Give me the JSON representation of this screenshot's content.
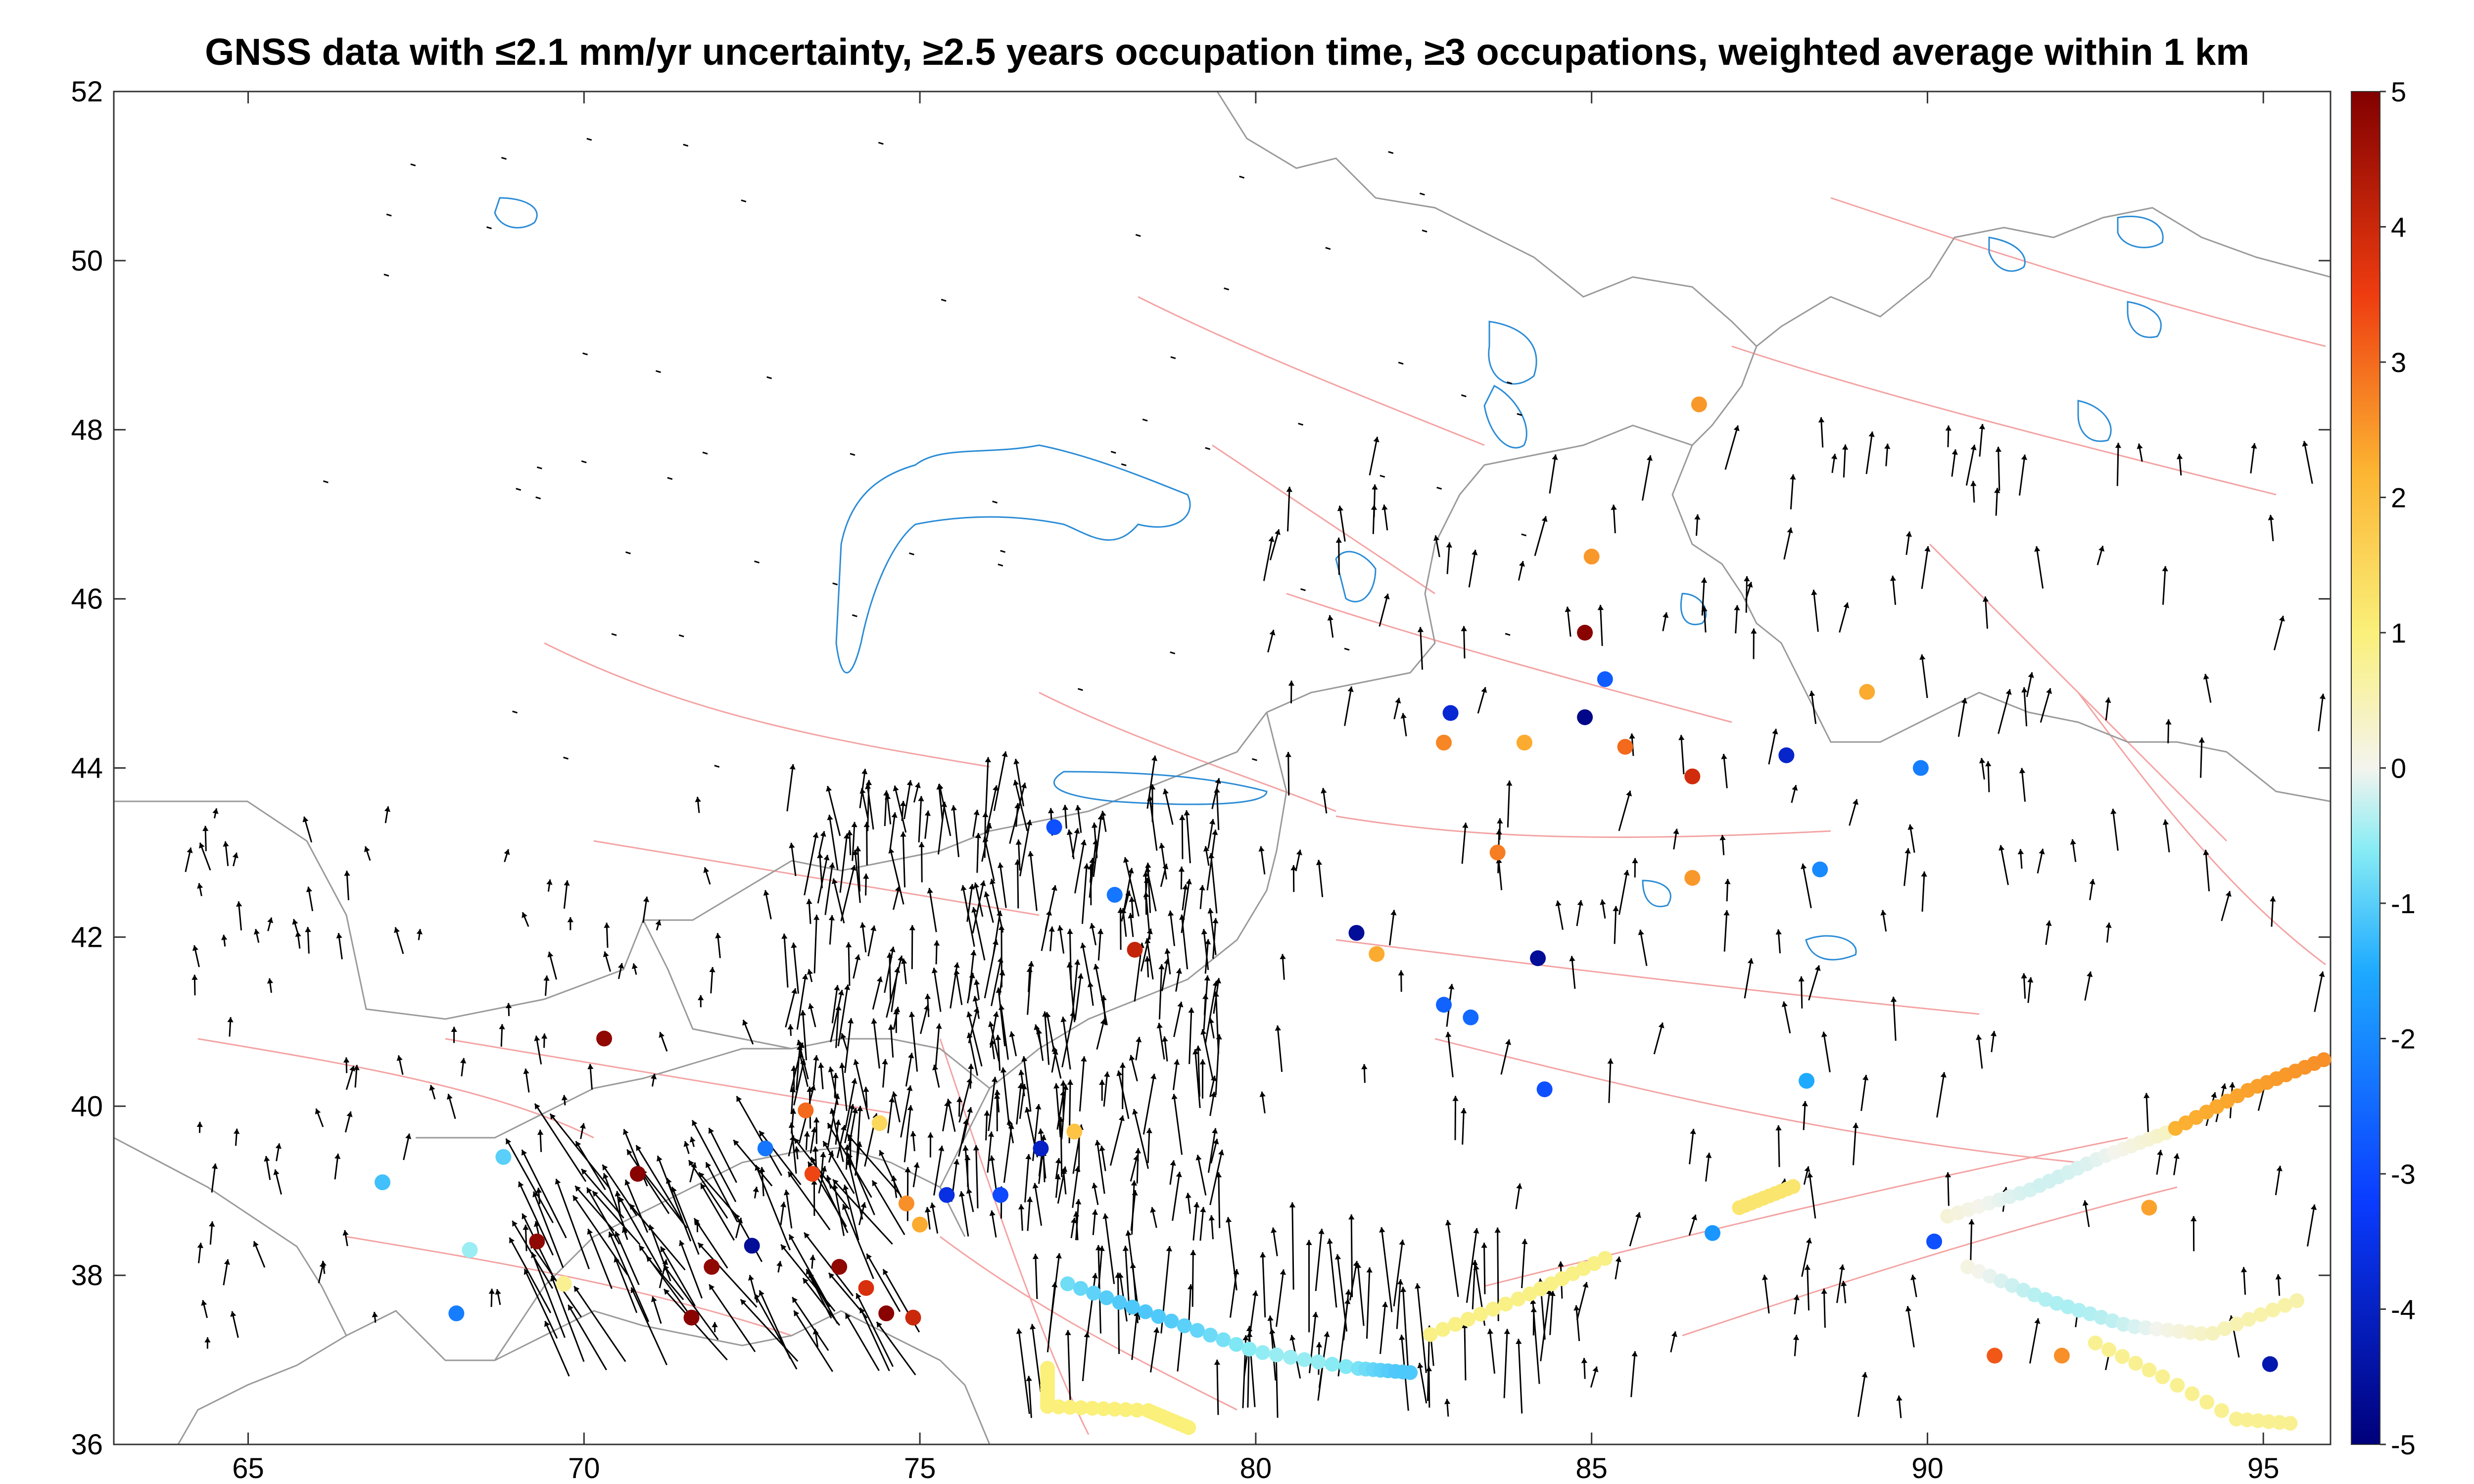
{
  "title": "GNSS data with ≤2.1 mm/yr uncertainty, ≥2.5 years occupation time, ≥3 occupations, weighted average within 1 km",
  "colors": {
    "border": "#9a9a9a",
    "lakes": "#2b8cd6",
    "faults": "#f4a3a3",
    "arrows": "#000000",
    "frame": "#000000"
  },
  "chart_data": {
    "type": "scatter",
    "title": "GNSS data with ≤2.1 mm/yr uncertainty, ≥2.5 years occupation time, ≥3 occupations, weighted average within 1 km",
    "xlim": [
      63,
      96
    ],
    "ylim": [
      36,
      52
    ],
    "xticks": [
      65,
      70,
      75,
      80,
      85,
      90,
      95
    ],
    "yticks": [
      36,
      38,
      40,
      42,
      44,
      46,
      48,
      50,
      52
    ],
    "colorbar": {
      "range": [
        -5,
        5
      ],
      "ticks": [
        5,
        4,
        3,
        2,
        1,
        0,
        -1,
        -2,
        -3,
        -4,
        -5
      ],
      "colormap": "jet-like (dark blue → cyan → white → yellow → dark red)"
    },
    "stations": [
      {
        "lon": 67.0,
        "lat": 39.1,
        "v": -1.2
      },
      {
        "lon": 68.1,
        "lat": 37.55,
        "v": -2.2
      },
      {
        "lon": 68.3,
        "lat": 38.3,
        "v": -0.5
      },
      {
        "lon": 68.8,
        "lat": 39.4,
        "v": -1.0
      },
      {
        "lon": 69.3,
        "lat": 38.4,
        "v": 4.8
      },
      {
        "lon": 69.7,
        "lat": 37.9,
        "v": 0.8
      },
      {
        "lon": 70.3,
        "lat": 40.8,
        "v": 4.8
      },
      {
        "lon": 70.8,
        "lat": 39.2,
        "v": 4.9
      },
      {
        "lon": 71.6,
        "lat": 37.5,
        "v": 4.9
      },
      {
        "lon": 71.9,
        "lat": 38.1,
        "v": 4.8
      },
      {
        "lon": 72.5,
        "lat": 38.35,
        "v": -4.6
      },
      {
        "lon": 73.3,
        "lat": 39.95,
        "v": 3.0
      },
      {
        "lon": 73.4,
        "lat": 39.2,
        "v": 3.4
      },
      {
        "lon": 73.8,
        "lat": 38.1,
        "v": 4.8
      },
      {
        "lon": 74.2,
        "lat": 37.85,
        "v": 3.8
      },
      {
        "lon": 74.5,
        "lat": 37.55,
        "v": 4.9
      },
      {
        "lon": 74.9,
        "lat": 37.5,
        "v": 4.0
      },
      {
        "lon": 74.8,
        "lat": 38.85,
        "v": 2.6
      },
      {
        "lon": 75.0,
        "lat": 38.6,
        "v": 2.3
      },
      {
        "lon": 75.4,
        "lat": 38.95,
        "v": -3.6
      },
      {
        "lon": 76.2,
        "lat": 38.95,
        "v": -3.0
      },
      {
        "lon": 76.8,
        "lat": 39.5,
        "v": -4.0
      },
      {
        "lon": 77.0,
        "lat": 43.3,
        "v": -2.9
      },
      {
        "lon": 77.9,
        "lat": 42.5,
        "v": -2.3
      },
      {
        "lon": 78.2,
        "lat": 41.85,
        "v": 4.1
      },
      {
        "lon": 77.3,
        "lat": 39.7,
        "v": 1.9
      },
      {
        "lon": 72.7,
        "lat": 39.5,
        "v": -2.3
      },
      {
        "lon": 74.4,
        "lat": 39.8,
        "v": 1.5
      },
      {
        "lon": 81.5,
        "lat": 42.05,
        "v": -4.6
      },
      {
        "lon": 81.8,
        "lat": 41.8,
        "v": 2.3
      },
      {
        "lon": 82.8,
        "lat": 41.2,
        "v": -2.6
      },
      {
        "lon": 83.2,
        "lat": 41.05,
        "v": -2.5
      },
      {
        "lon": 84.2,
        "lat": 41.75,
        "v": -4.6
      },
      {
        "lon": 84.3,
        "lat": 40.2,
        "v": -2.9
      },
      {
        "lon": 84.9,
        "lat": 45.6,
        "v": 4.9
      },
      {
        "lon": 85.2,
        "lat": 45.05,
        "v": -2.7
      },
      {
        "lon": 84.9,
        "lat": 44.6,
        "v": -4.8
      },
      {
        "lon": 82.9,
        "lat": 44.65,
        "v": -3.8
      },
      {
        "lon": 85.5,
        "lat": 44.25,
        "v": 3.0
      },
      {
        "lon": 86.5,
        "lat": 43.9,
        "v": 3.9
      },
      {
        "lon": 87.9,
        "lat": 44.15,
        "v": -3.9
      },
      {
        "lon": 89.9,
        "lat": 44.0,
        "v": -2.2
      },
      {
        "lon": 86.5,
        "lat": 42.7,
        "v": 2.5
      },
      {
        "lon": 88.4,
        "lat": 42.8,
        "v": -2.0
      },
      {
        "lon": 89.1,
        "lat": 44.9,
        "v": 2.3
      },
      {
        "lon": 91.0,
        "lat": 37.05,
        "v": 3.2
      },
      {
        "lon": 92.0,
        "lat": 37.05,
        "v": 2.6
      },
      {
        "lon": 95.1,
        "lat": 36.95,
        "v": -4.3
      },
      {
        "lon": 93.3,
        "lat": 38.8,
        "v": 2.4
      },
      {
        "lon": 90.1,
        "lat": 38.4,
        "v": -2.9
      },
      {
        "lon": 86.8,
        "lat": 38.5,
        "v": -1.8
      },
      {
        "lon": 88.2,
        "lat": 40.3,
        "v": -1.5
      },
      {
        "lon": 86.6,
        "lat": 48.3,
        "v": 2.5
      },
      {
        "lon": 85.0,
        "lat": 46.5,
        "v": 2.5
      },
      {
        "lon": 82.8,
        "lat": 44.3,
        "v": 2.7
      },
      {
        "lon": 84.0,
        "lat": 44.3,
        "v": 2.3
      },
      {
        "lon": 83.6,
        "lat": 43.0,
        "v": 2.8
      }
    ]
  }
}
